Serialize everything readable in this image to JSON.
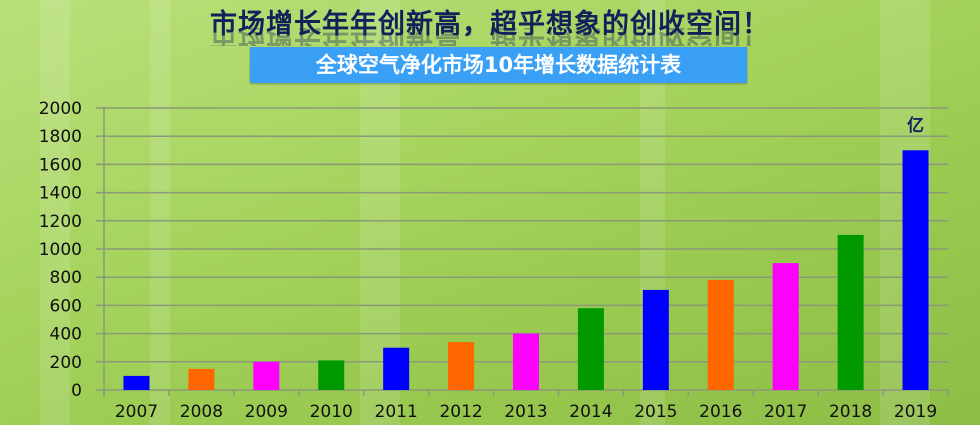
{
  "header": {
    "title": "市场增长年年创新高，超乎想象的创收空间！",
    "banner": "全球空气净化市场10年增长数据统计表"
  },
  "chart_data": {
    "type": "bar",
    "title": "全球空气净化市场10年增长数据统计表",
    "unit_label": "亿",
    "categories": [
      "2007",
      "2008",
      "2009",
      "2010",
      "2011",
      "2012",
      "2013",
      "2014",
      "2015",
      "2016",
      "2017",
      "2018",
      "2019"
    ],
    "values": [
      100,
      150,
      200,
      210,
      300,
      340,
      400,
      580,
      710,
      780,
      900,
      1100,
      1700
    ],
    "colors": [
      "#0000ff",
      "#ff6600",
      "#ff00ff",
      "#009900",
      "#0000ff",
      "#ff6600",
      "#ff00ff",
      "#009900",
      "#0000ff",
      "#ff6600",
      "#ff00ff",
      "#009900",
      "#0000ff"
    ],
    "ylim": [
      0,
      2000
    ],
    "yticks": [
      0,
      200,
      400,
      600,
      800,
      1000,
      1200,
      1400,
      1600,
      1800,
      2000
    ],
    "grid": true,
    "legend": "none"
  }
}
